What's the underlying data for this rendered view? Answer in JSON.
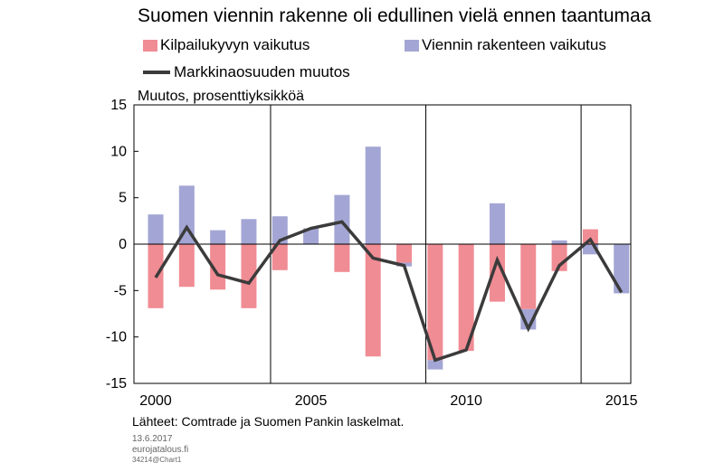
{
  "chart_data": {
    "type": "bar",
    "title": "Suomen viennin rakenne oli edullinen vielä ennen taantumaa",
    "ylabel": "Muutos, prosenttiyksikköä",
    "ylim": [
      -15,
      15
    ],
    "yticks": [
      15,
      10,
      5,
      0,
      -5,
      -10,
      -15
    ],
    "xlim": [
      1999.3,
      2015.3
    ],
    "x_tick_labels": [
      "2000",
      "2005",
      "2010",
      "2015"
    ],
    "x_gridlines": [
      2003.7,
      2008.7,
      2013.7
    ],
    "grid": "vertical",
    "legend_position": "top",
    "stacked": true,
    "x": [
      2000,
      2001,
      2002,
      2003,
      2004,
      2005,
      2006,
      2007,
      2008,
      2009,
      2010,
      2011,
      2012,
      2013,
      2014,
      2015
    ],
    "series": [
      {
        "name": "Kilpailukyvyn vaikutus",
        "kind": "bar",
        "color": "#f08c94",
        "values": [
          -6.9,
          -4.6,
          -4.9,
          -6.9,
          -2.8,
          0.0,
          -3.0,
          -12.1,
          -2.0,
          -12.5,
          -11.5,
          -6.2,
          -7.0,
          -2.9,
          1.6,
          0.0
        ]
      },
      {
        "name": "Viennin rakenteen vaikutus",
        "kind": "bar",
        "color": "#a3a6d4",
        "values": [
          3.2,
          6.3,
          1.5,
          2.7,
          3.0,
          1.7,
          5.3,
          10.5,
          -0.4,
          -1.0,
          0.0,
          4.4,
          -2.2,
          0.4,
          -1.1,
          -5.3
        ]
      },
      {
        "name": "Markkinaosuuden muutos",
        "kind": "line",
        "color": "#3b3b3b",
        "values": [
          -3.6,
          1.8,
          -3.3,
          -4.2,
          0.4,
          1.7,
          2.4,
          -1.5,
          -2.3,
          -12.5,
          -11.4,
          -1.7,
          -9.1,
          -2.3,
          0.5,
          -5.2
        ]
      }
    ],
    "source": "Lähteet: Comtrade ja Suomen Pankin laskelmat."
  },
  "footer": {
    "date": "13.6.2017",
    "site": "eurojatalous.fi",
    "code": "34214@Chart1"
  }
}
